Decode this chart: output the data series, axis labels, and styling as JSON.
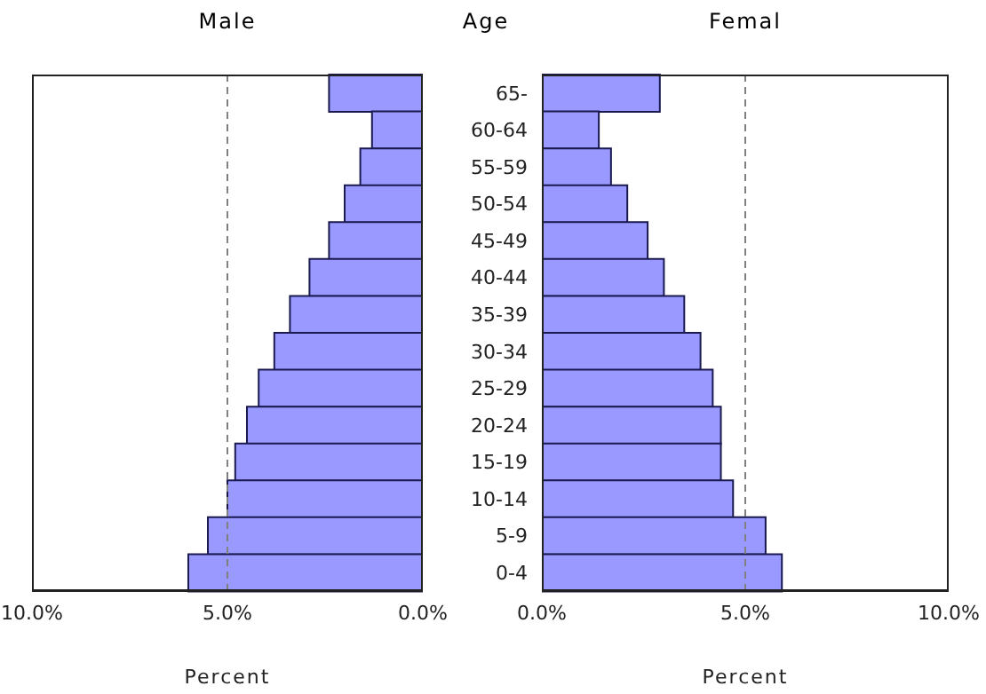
{
  "chart_data": [
    {
      "type": "bar",
      "orientation": "horizontal",
      "title": "Male",
      "xlabel": "Percent",
      "categories": [
        null,
        null,
        null,
        null,
        null,
        null,
        null,
        null,
        null,
        null,
        null,
        null,
        null,
        null
      ],
      "values": [
        2.4,
        1.3,
        1.6,
        2.0,
        2.4,
        2.9,
        3.4,
        3.8,
        4.2,
        4.5,
        4.8,
        5.0,
        5.5,
        6.0
      ],
      "color": "#9999ff",
      "xlim": [
        10,
        0
      ],
      "xticks": [
        {
          "value": 10,
          "label": "10.0%"
        },
        {
          "value": 5,
          "label": "5.0%"
        },
        {
          "value": 0,
          "label": "0.0%"
        }
      ],
      "tick_labels": "x",
      "grid": false,
      "legend": false,
      "ref_lines": [
        {
          "axis": "x",
          "value": 5,
          "line_style": "dashed",
          "color": "#808080"
        }
      ]
    },
    {
      "type": "bar",
      "orientation": "horizontal",
      "title": "Femal",
      "xlabel": "Percent",
      "ylabel": "Age",
      "categories": [
        "65-",
        "60-64",
        "55-59",
        "50-54",
        "45-49",
        "40-44",
        "35-39",
        "30-34",
        "25-29",
        "20-24",
        "15-19",
        "10-14",
        "5-9",
        "0-4"
      ],
      "values": [
        2.9,
        1.4,
        1.7,
        2.1,
        2.6,
        3.0,
        3.5,
        3.9,
        4.2,
        4.4,
        4.4,
        4.7,
        5.5,
        5.9
      ],
      "color": "#9999ff",
      "xlim": [
        0,
        10
      ],
      "xticks": [
        {
          "value": 0,
          "label": "0.0%"
        },
        {
          "value": 5,
          "label": "5.0%"
        },
        {
          "value": 10,
          "label": "10.0%"
        }
      ],
      "grid": false,
      "legend": false,
      "ref_lines": [
        {
          "axis": "x",
          "value": 5,
          "line_style": "dashed",
          "color": "#808080"
        }
      ]
    }
  ]
}
